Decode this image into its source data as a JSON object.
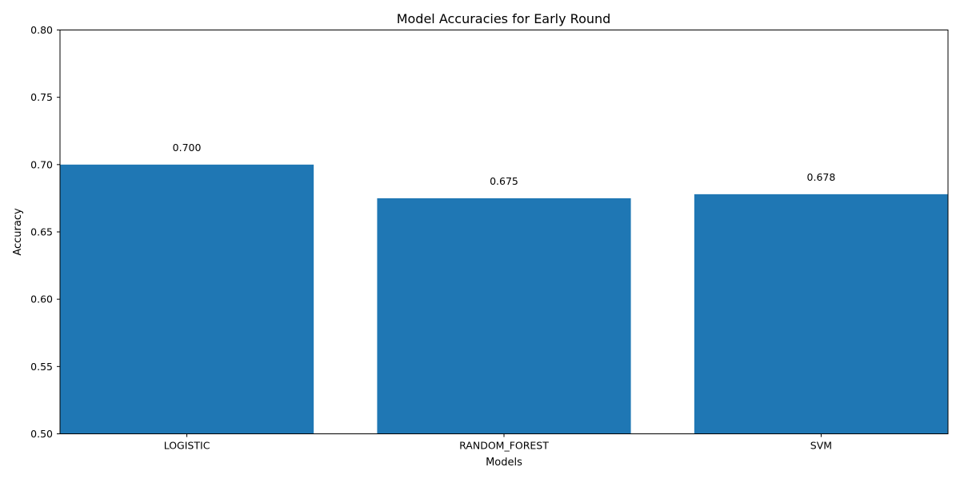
{
  "chart_data": {
    "type": "bar",
    "title": "Model Accuracies for Early Round",
    "xlabel": "Models",
    "ylabel": "Accuracy",
    "categories": [
      "LOGISTIC",
      "RANDOM_FOREST",
      "SVM"
    ],
    "values": [
      0.7,
      0.675,
      0.678
    ],
    "value_labels": [
      "0.700",
      "0.675",
      "0.678"
    ],
    "ylim": [
      0.5,
      0.8
    ],
    "yticks": [
      0.5,
      0.55,
      0.6,
      0.65,
      0.7,
      0.75,
      0.8
    ],
    "ytick_labels": [
      "0.50",
      "0.55",
      "0.60",
      "0.65",
      "0.70",
      "0.75",
      "0.80"
    ],
    "grid": false,
    "bar_color": "#1f77b4"
  }
}
